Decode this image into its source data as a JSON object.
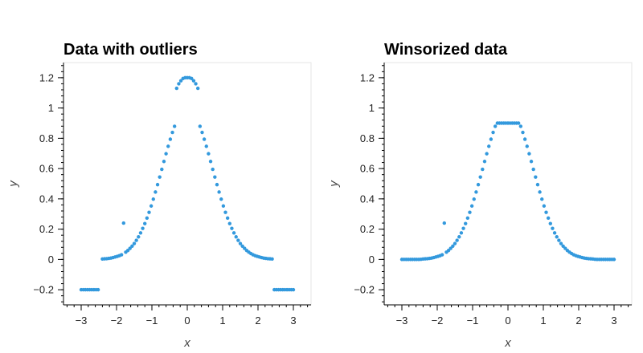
{
  "chart_data": [
    {
      "type": "scatter",
      "title": "Data with outliers",
      "xlabel": "x",
      "ylabel": "y",
      "xlim": [
        -3.5,
        3.5
      ],
      "ylim": [
        -0.3,
        1.3
      ],
      "x_ticks": [
        -3,
        -2,
        -1,
        0,
        1,
        2,
        3
      ],
      "x_tick_labels": [
        "−3",
        "−2",
        "−1",
        "0",
        "1",
        "2",
        "3"
      ],
      "y_ticks": [
        -0.2,
        0,
        0.2,
        0.4,
        0.6,
        0.8,
        1.0,
        1.2
      ],
      "y_tick_labels": [
        "−0.2",
        "0",
        "0.2",
        "0.4",
        "0.6",
        "0.8",
        "1",
        "1.2"
      ],
      "grid": false,
      "marker_color": "#3399dd",
      "points": [
        [
          -3.0,
          -0.2
        ],
        [
          -2.94,
          -0.2
        ],
        [
          -2.88,
          -0.2
        ],
        [
          -2.82,
          -0.2
        ],
        [
          -2.76,
          -0.2
        ],
        [
          -2.7,
          -0.2
        ],
        [
          -2.64,
          -0.2
        ],
        [
          -2.58,
          -0.2
        ],
        [
          -2.52,
          -0.2
        ],
        [
          -2.4,
          0.003
        ],
        [
          -2.34,
          0.004
        ],
        [
          -2.28,
          0.005
        ],
        [
          -2.22,
          0.007
        ],
        [
          -2.16,
          0.009
        ],
        [
          -2.1,
          0.012
        ],
        [
          -2.04,
          0.016
        ],
        [
          -1.98,
          0.02
        ],
        [
          -1.92,
          0.025
        ],
        [
          -1.86,
          0.031
        ],
        [
          -1.8,
          0.24
        ],
        [
          -1.74,
          0.048
        ],
        [
          -1.68,
          0.059
        ],
        [
          -1.62,
          0.073
        ],
        [
          -1.56,
          0.088
        ],
        [
          -1.5,
          0.105
        ],
        [
          -1.44,
          0.126
        ],
        [
          -1.38,
          0.149
        ],
        [
          -1.32,
          0.175
        ],
        [
          -1.26,
          0.205
        ],
        [
          -1.2,
          0.237
        ],
        [
          -1.14,
          0.273
        ],
        [
          -1.08,
          0.311
        ],
        [
          -1.02,
          0.353
        ],
        [
          -0.96,
          0.398
        ],
        [
          -0.9,
          0.445
        ],
        [
          -0.84,
          0.494
        ],
        [
          -0.78,
          0.544
        ],
        [
          -0.72,
          0.595
        ],
        [
          -0.66,
          0.647
        ],
        [
          -0.6,
          0.698
        ],
        [
          -0.54,
          0.747
        ],
        [
          -0.48,
          0.794
        ],
        [
          -0.42,
          0.839
        ],
        [
          -0.36,
          0.879
        ],
        [
          -0.3,
          1.13
        ],
        [
          -0.24,
          1.16
        ],
        [
          -0.18,
          1.18
        ],
        [
          -0.12,
          1.195
        ],
        [
          -0.06,
          1.2
        ],
        [
          0.0,
          1.2
        ],
        [
          0.06,
          1.2
        ],
        [
          0.12,
          1.195
        ],
        [
          0.18,
          1.18
        ],
        [
          0.24,
          1.16
        ],
        [
          0.3,
          1.13
        ],
        [
          0.36,
          0.879
        ],
        [
          0.42,
          0.839
        ],
        [
          0.48,
          0.794
        ],
        [
          0.54,
          0.747
        ],
        [
          0.6,
          0.698
        ],
        [
          0.66,
          0.647
        ],
        [
          0.72,
          0.595
        ],
        [
          0.78,
          0.544
        ],
        [
          0.84,
          0.494
        ],
        [
          0.9,
          0.445
        ],
        [
          0.96,
          0.398
        ],
        [
          1.02,
          0.353
        ],
        [
          1.08,
          0.311
        ],
        [
          1.14,
          0.273
        ],
        [
          1.2,
          0.237
        ],
        [
          1.26,
          0.205
        ],
        [
          1.32,
          0.175
        ],
        [
          1.38,
          0.149
        ],
        [
          1.44,
          0.126
        ],
        [
          1.5,
          0.105
        ],
        [
          1.56,
          0.088
        ],
        [
          1.62,
          0.073
        ],
        [
          1.68,
          0.059
        ],
        [
          1.74,
          0.048
        ],
        [
          1.8,
          0.039
        ],
        [
          1.86,
          0.031
        ],
        [
          1.92,
          0.025
        ],
        [
          1.98,
          0.02
        ],
        [
          2.04,
          0.016
        ],
        [
          2.1,
          0.012
        ],
        [
          2.16,
          0.009
        ],
        [
          2.22,
          0.007
        ],
        [
          2.28,
          0.005
        ],
        [
          2.34,
          0.004
        ],
        [
          2.4,
          0.003
        ],
        [
          2.46,
          -0.2
        ],
        [
          2.52,
          -0.2
        ],
        [
          2.58,
          -0.2
        ],
        [
          2.64,
          -0.2
        ],
        [
          2.7,
          -0.2
        ],
        [
          2.76,
          -0.2
        ],
        [
          2.82,
          -0.2
        ],
        [
          2.88,
          -0.2
        ],
        [
          2.94,
          -0.2
        ],
        [
          3.0,
          -0.2
        ]
      ]
    },
    {
      "type": "scatter",
      "title": "Winsorized data",
      "xlabel": "x",
      "ylabel": "y",
      "xlim": [
        -3.5,
        3.5
      ],
      "ylim": [
        -0.3,
        1.3
      ],
      "x_ticks": [
        -3,
        -2,
        -1,
        0,
        1,
        2,
        3
      ],
      "x_tick_labels": [
        "−3",
        "−2",
        "−1",
        "0",
        "1",
        "2",
        "3"
      ],
      "y_ticks": [
        -0.2,
        0,
        0.2,
        0.4,
        0.6,
        0.8,
        1.0,
        1.2
      ],
      "y_tick_labels": [
        "−0.2",
        "0",
        "0.2",
        "0.4",
        "0.6",
        "0.8",
        "1",
        "1.2"
      ],
      "grid": false,
      "marker_color": "#3399dd",
      "points": [
        [
          -3.0,
          0.0
        ],
        [
          -2.94,
          0.0
        ],
        [
          -2.88,
          0.0
        ],
        [
          -2.82,
          0.0
        ],
        [
          -2.76,
          0.0
        ],
        [
          -2.7,
          0.0
        ],
        [
          -2.64,
          0.0
        ],
        [
          -2.58,
          0.0
        ],
        [
          -2.52,
          0.0
        ],
        [
          -2.46,
          0.001
        ],
        [
          -2.4,
          0.003
        ],
        [
          -2.34,
          0.004
        ],
        [
          -2.28,
          0.005
        ],
        [
          -2.22,
          0.007
        ],
        [
          -2.16,
          0.009
        ],
        [
          -2.1,
          0.012
        ],
        [
          -2.04,
          0.016
        ],
        [
          -1.98,
          0.02
        ],
        [
          -1.92,
          0.025
        ],
        [
          -1.86,
          0.031
        ],
        [
          -1.8,
          0.24
        ],
        [
          -1.74,
          0.048
        ],
        [
          -1.68,
          0.059
        ],
        [
          -1.62,
          0.073
        ],
        [
          -1.56,
          0.088
        ],
        [
          -1.5,
          0.105
        ],
        [
          -1.44,
          0.126
        ],
        [
          -1.38,
          0.149
        ],
        [
          -1.32,
          0.175
        ],
        [
          -1.26,
          0.205
        ],
        [
          -1.2,
          0.237
        ],
        [
          -1.14,
          0.273
        ],
        [
          -1.08,
          0.311
        ],
        [
          -1.02,
          0.353
        ],
        [
          -0.96,
          0.398
        ],
        [
          -0.9,
          0.445
        ],
        [
          -0.84,
          0.494
        ],
        [
          -0.78,
          0.544
        ],
        [
          -0.72,
          0.595
        ],
        [
          -0.66,
          0.647
        ],
        [
          -0.6,
          0.698
        ],
        [
          -0.54,
          0.747
        ],
        [
          -0.48,
          0.794
        ],
        [
          -0.42,
          0.839
        ],
        [
          -0.36,
          0.879
        ],
        [
          -0.3,
          0.9
        ],
        [
          -0.24,
          0.9
        ],
        [
          -0.18,
          0.9
        ],
        [
          -0.12,
          0.9
        ],
        [
          -0.06,
          0.9
        ],
        [
          0.0,
          0.9
        ],
        [
          0.06,
          0.9
        ],
        [
          0.12,
          0.9
        ],
        [
          0.18,
          0.9
        ],
        [
          0.24,
          0.9
        ],
        [
          0.3,
          0.9
        ],
        [
          0.36,
          0.879
        ],
        [
          0.42,
          0.839
        ],
        [
          0.48,
          0.794
        ],
        [
          0.54,
          0.747
        ],
        [
          0.6,
          0.698
        ],
        [
          0.66,
          0.647
        ],
        [
          0.72,
          0.595
        ],
        [
          0.78,
          0.544
        ],
        [
          0.84,
          0.494
        ],
        [
          0.9,
          0.445
        ],
        [
          0.96,
          0.398
        ],
        [
          1.02,
          0.353
        ],
        [
          1.08,
          0.311
        ],
        [
          1.14,
          0.273
        ],
        [
          1.2,
          0.237
        ],
        [
          1.26,
          0.205
        ],
        [
          1.32,
          0.175
        ],
        [
          1.38,
          0.149
        ],
        [
          1.44,
          0.126
        ],
        [
          1.5,
          0.105
        ],
        [
          1.56,
          0.088
        ],
        [
          1.62,
          0.073
        ],
        [
          1.68,
          0.059
        ],
        [
          1.74,
          0.048
        ],
        [
          1.8,
          0.039
        ],
        [
          1.86,
          0.031
        ],
        [
          1.92,
          0.025
        ],
        [
          1.98,
          0.02
        ],
        [
          2.04,
          0.016
        ],
        [
          2.1,
          0.012
        ],
        [
          2.16,
          0.009
        ],
        [
          2.22,
          0.007
        ],
        [
          2.28,
          0.005
        ],
        [
          2.34,
          0.004
        ],
        [
          2.4,
          0.003
        ],
        [
          2.46,
          0.001
        ],
        [
          2.52,
          0.0
        ],
        [
          2.58,
          0.0
        ],
        [
          2.64,
          0.0
        ],
        [
          2.7,
          0.0
        ],
        [
          2.76,
          0.0
        ],
        [
          2.82,
          0.0
        ],
        [
          2.88,
          0.0
        ],
        [
          2.94,
          0.0
        ],
        [
          3.0,
          0.0
        ]
      ]
    }
  ]
}
